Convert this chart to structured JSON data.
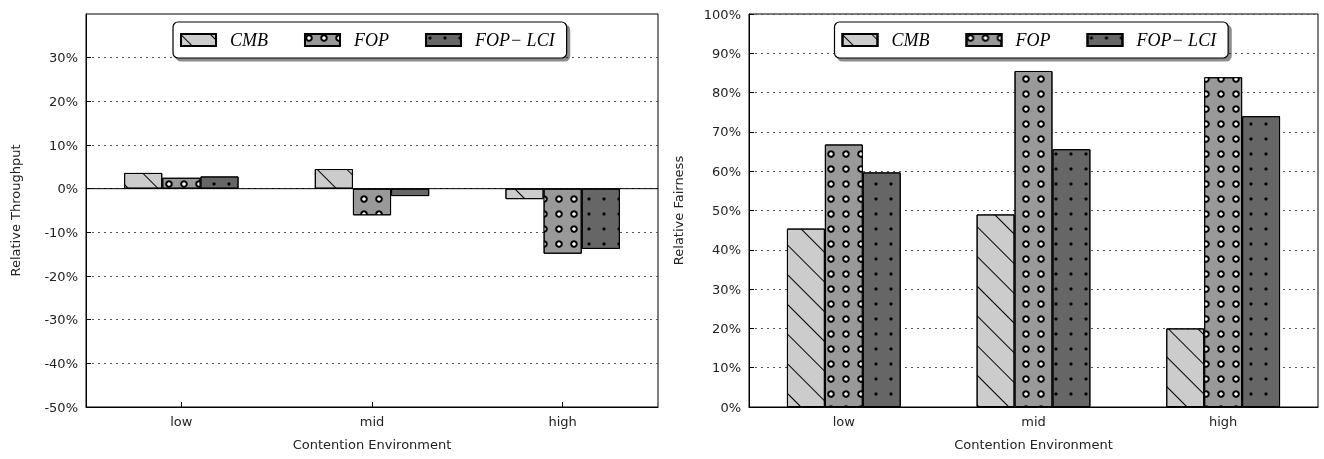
{
  "chart_data": [
    {
      "type": "bar",
      "xlabel": "Contention Environment",
      "ylabel": "Relative Throughput",
      "categories": [
        "low",
        "mid",
        "high"
      ],
      "series": [
        {
          "name": "CMB",
          "color": "#cccccc",
          "values": [
            3.6,
            4.5,
            -2.4
          ]
        },
        {
          "name": "FOP",
          "color": "#999999",
          "values": [
            2.5,
            -6.1,
            -14.9
          ]
        },
        {
          "name": "FOP− LCI",
          "color": "#666666",
          "values": [
            2.8,
            -1.7,
            -13.8
          ]
        }
      ],
      "ylim": [
        -50,
        40
      ],
      "yticks": [
        {
          "value": -50,
          "label": "-50%"
        },
        {
          "value": -40,
          "label": "-40%"
        },
        {
          "value": -30,
          "label": "-30%"
        },
        {
          "value": -20,
          "label": "-20%"
        },
        {
          "value": -10,
          "label": "-10%"
        },
        {
          "value": 0,
          "label": "0%"
        },
        {
          "value": 10,
          "label": "10%"
        },
        {
          "value": 20,
          "label": "20%"
        },
        {
          "value": 30,
          "label": "30%"
        }
      ],
      "grid": "y",
      "legend": "top",
      "ref_lines": [
        {
          "axis": "y",
          "value": 0,
          "color": "#000000",
          "line_style": "solid"
        }
      ]
    },
    {
      "type": "bar",
      "xlabel": "Contention Environment",
      "ylabel": "Relative Fairness",
      "categories": [
        "low",
        "mid",
        "high"
      ],
      "series": [
        {
          "name": "CMB",
          "color": "#cccccc",
          "values": [
            45.4,
            49.0,
            20.0
          ]
        },
        {
          "name": "FOP",
          "color": "#999999",
          "values": [
            66.8,
            85.5,
            83.9
          ]
        },
        {
          "name": "FOP− LCI",
          "color": "#666666",
          "values": [
            59.7,
            65.6,
            74.0
          ]
        }
      ],
      "ylim": [
        0,
        100
      ],
      "yticks": [
        {
          "value": 0,
          "label": "0%"
        },
        {
          "value": 10,
          "label": "10%"
        },
        {
          "value": 20,
          "label": "20%"
        },
        {
          "value": 30,
          "label": "30%"
        },
        {
          "value": 40,
          "label": "40%"
        },
        {
          "value": 50,
          "label": "50%"
        },
        {
          "value": 60,
          "label": "60%"
        },
        {
          "value": 70,
          "label": "70%"
        },
        {
          "value": 80,
          "label": "80%"
        },
        {
          "value": 90,
          "label": "90%"
        },
        {
          "value": 100,
          "label": "100%"
        }
      ],
      "grid": "y",
      "legend": "top"
    }
  ]
}
